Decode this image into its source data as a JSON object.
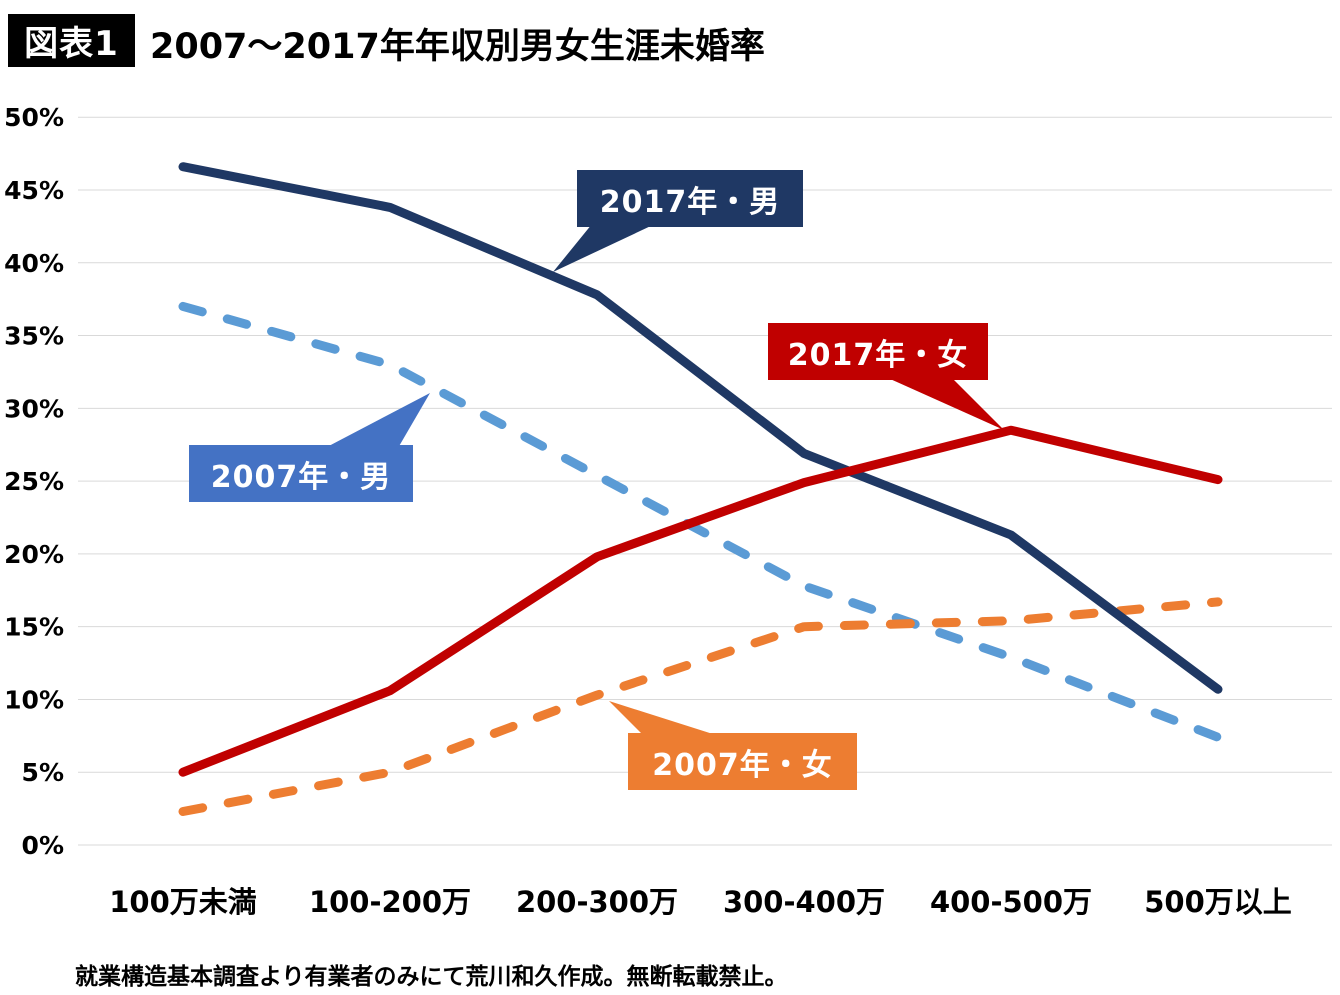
{
  "header": {
    "badge": "図表1",
    "title": "2007〜2017年年収別男女生涯未婚率"
  },
  "caption": "就業構造基本調査より有業者のみにて荒川和久作成。無断転載禁止。",
  "colors": {
    "navy": "#1F3864",
    "light_blue": "#5B9BD5",
    "blue_box": "#4472C4",
    "red": "#C00000",
    "orange": "#ED7D31",
    "gridline": "#D9D9D9",
    "text": "#000000",
    "background": "#FFFFFF"
  },
  "chart_data": {
    "type": "line",
    "title": "2007〜2017年年収別男女生涯未婚率",
    "xlabel": "",
    "ylabel": "",
    "categories": [
      "100万未満",
      "100-200万",
      "200-300万",
      "300-400万",
      "400-500万",
      "500万以上"
    ],
    "series": [
      {
        "name": "2007年・男",
        "color": "#5B9BD5",
        "line_style": "dashed",
        "values": [
          37.0,
          33.0,
          25.4,
          17.8,
          12.9,
          7.4
        ]
      },
      {
        "name": "2007年・女",
        "color": "#ED7D31",
        "line_style": "dashed",
        "values": [
          2.3,
          5.0,
          10.3,
          15.0,
          15.4,
          16.7
        ]
      },
      {
        "name": "2017年・男",
        "color": "#1F3864",
        "line_style": "solid",
        "values": [
          46.6,
          43.8,
          37.8,
          26.9,
          21.3,
          10.7
        ]
      },
      {
        "name": "2017年・女",
        "color": "#C00000",
        "line_style": "solid",
        "values": [
          5.0,
          10.6,
          19.8,
          24.9,
          28.5,
          25.1
        ]
      }
    ],
    "ylim": [
      0,
      50
    ],
    "ytick_step": 5,
    "ytick_labels": [
      "0%",
      "5%",
      "10%",
      "15%",
      "20%",
      "25%",
      "30%",
      "35%",
      "40%",
      "45%",
      "50%"
    ],
    "grid": true,
    "legend_position": "callouts-on-plot"
  },
  "callouts": [
    {
      "label": "2017年・男",
      "color": "#1F3864"
    },
    {
      "label": "2017年・女",
      "color": "#C00000"
    },
    {
      "label": "2007年・男",
      "color": "#4472C4"
    },
    {
      "label": "2007年・女",
      "color": "#ED7D31"
    }
  ]
}
